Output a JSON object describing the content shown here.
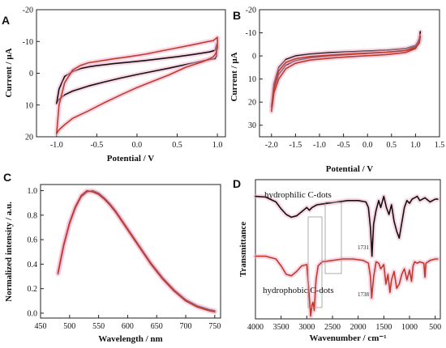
{
  "colors": {
    "black": "#111111",
    "red": "#c0392b",
    "halo": "#f4b6cf"
  },
  "chart_data": [
    {
      "panel": "A",
      "type": "line",
      "xlabel": "Potential / V",
      "ylabel": "Current / μA",
      "xlim": [
        -1.25,
        1.1
      ],
      "ylim": [
        20,
        -20
      ],
      "y_inverted": true,
      "xticks": [
        -1.0,
        -0.5,
        0.0,
        0.5,
        1.0
      ],
      "xtick_labels": [
        "-1.0",
        "-0.5",
        "0.0",
        "0.5",
        "1.0"
      ],
      "yticks": [
        -20,
        -10,
        0,
        10,
        20
      ],
      "ytick_labels": [
        "-20",
        "-10",
        "0",
        "10",
        "20"
      ],
      "series": [
        {
          "color": "black",
          "x": [
            -1.0,
            -0.97,
            -0.9,
            -0.8,
            -0.7,
            -0.6,
            -0.5,
            -0.3,
            -0.1,
            0.1,
            0.3,
            0.5,
            0.7,
            0.9,
            0.97,
            0.99,
            0.99,
            0.97,
            0.9,
            0.8,
            0.6,
            0.4,
            0.2,
            0.0,
            -0.2,
            -0.4,
            -0.6,
            -0.8,
            -0.9,
            -0.97,
            -1.0
          ],
          "y": [
            9.5,
            5.0,
            1.0,
            -0.5,
            -1.5,
            -2.0,
            -2.4,
            -3.0,
            -3.5,
            -4.0,
            -4.6,
            -5.2,
            -5.9,
            -6.7,
            -7.2,
            -9.0,
            -5.5,
            -4.6,
            -4.3,
            -3.8,
            -2.7,
            -1.6,
            -0.6,
            0.4,
            1.5,
            2.7,
            4.0,
            5.6,
            6.8,
            8.2,
            9.5
          ]
        },
        {
          "color": "red",
          "x": [
            -1.0,
            -0.97,
            -0.9,
            -0.8,
            -0.7,
            -0.6,
            -0.5,
            -0.3,
            -0.1,
            0.1,
            0.3,
            0.5,
            0.7,
            0.85,
            0.95,
            1.0,
            1.0,
            0.98,
            0.95,
            0.9,
            0.8,
            0.6,
            0.4,
            0.2,
            0.0,
            -0.2,
            -0.4,
            -0.6,
            -0.8,
            -0.9,
            -0.97,
            -1.0
          ],
          "y": [
            19.0,
            10.0,
            3.0,
            -1.0,
            -2.5,
            -3.3,
            -3.7,
            -4.5,
            -5.2,
            -6.0,
            -7.0,
            -8.0,
            -9.0,
            -9.8,
            -10.3,
            -11.3,
            -8.0,
            -6.2,
            -5.2,
            -4.5,
            -3.5,
            -1.8,
            0.5,
            2.5,
            4.5,
            6.8,
            9.2,
            11.8,
            14.2,
            16.2,
            17.8,
            19.0
          ]
        }
      ]
    },
    {
      "panel": "B",
      "type": "line",
      "xlabel": "Potential / V",
      "ylabel": "Current / μA",
      "xlim": [
        -2.25,
        1.5
      ],
      "ylim": [
        35,
        -20
      ],
      "y_inverted": true,
      "xticks": [
        -2.0,
        -1.5,
        -1.0,
        -0.5,
        0.0,
        0.5,
        1.0,
        1.5
      ],
      "xtick_labels": [
        "-2.0",
        "-1.5",
        "-1.0",
        "-0.5",
        "0.0",
        "0.5",
        "1.0",
        "1.5"
      ],
      "yticks": [
        -20,
        -10,
        0,
        10,
        20,
        30
      ],
      "ytick_labels": [
        "-20",
        "-10",
        "0",
        "10",
        "20",
        "30"
      ],
      "series": [
        {
          "color": "black",
          "x": [
            -2.0,
            -1.95,
            -1.85,
            -1.7,
            -1.5,
            -1.2,
            -0.8,
            -0.4,
            0.0,
            0.4,
            0.8,
            1.0,
            1.08,
            1.1,
            1.08,
            1.0,
            0.8,
            0.4,
            0.0,
            -0.4,
            -0.8,
            -1.2,
            -1.5,
            -1.7,
            -1.85,
            -1.95,
            -2.0
          ],
          "y": [
            22.0,
            12.0,
            5.0,
            1.5,
            0.0,
            -0.8,
            -1.4,
            -1.8,
            -2.1,
            -2.5,
            -3.2,
            -4.5,
            -7.0,
            -10.5,
            -7.5,
            -4.0,
            -2.4,
            -1.6,
            -1.1,
            -0.6,
            0.0,
            0.8,
            2.0,
            4.0,
            8.0,
            14.0,
            22.0
          ]
        },
        {
          "color": "red",
          "x": [
            -2.0,
            -1.95,
            -1.85,
            -1.7,
            -1.5,
            -1.2,
            -0.8,
            -0.4,
            0.0,
            0.4,
            0.8,
            1.0,
            1.08,
            1.1,
            1.08,
            1.0,
            0.8,
            0.4,
            0.0,
            -0.4,
            -0.8,
            -1.2,
            -1.5,
            -1.7,
            -1.85,
            -1.95,
            -2.0
          ],
          "y": [
            24.0,
            14.0,
            6.5,
            2.8,
            1.2,
            0.3,
            -0.3,
            -0.8,
            -1.2,
            -1.6,
            -2.3,
            -3.6,
            -5.5,
            -8.5,
            -6.0,
            -3.2,
            -1.5,
            -0.6,
            -0.1,
            0.4,
            1.0,
            1.8,
            3.2,
            5.5,
            10.0,
            16.0,
            24.0
          ]
        }
      ]
    },
    {
      "panel": "C",
      "type": "line",
      "xlabel": "Wavelength / nm",
      "ylabel": "Normalized intensity / a.u.",
      "xlim": [
        450,
        760
      ],
      "ylim": [
        -0.04,
        1.05
      ],
      "xticks": [
        450,
        500,
        550,
        600,
        650,
        700,
        750
      ],
      "xtick_labels": [
        "450",
        "500",
        "550",
        "600",
        "650",
        "700",
        "750"
      ],
      "yticks": [
        0.0,
        0.2,
        0.4,
        0.6,
        0.8,
        1.0
      ],
      "ytick_labels": [
        "0.0",
        "0.2",
        "0.4",
        "0.6",
        "0.8",
        "1.0"
      ],
      "series": [
        {
          "color": "black",
          "x": [
            480,
            490,
            500,
            510,
            520,
            530,
            540,
            550,
            560,
            570,
            580,
            600,
            620,
            640,
            660,
            680,
            700,
            720,
            740,
            750
          ],
          "y": [
            0.32,
            0.55,
            0.73,
            0.86,
            0.95,
            0.99,
            1.0,
            0.98,
            0.94,
            0.89,
            0.83,
            0.69,
            0.55,
            0.41,
            0.29,
            0.19,
            0.11,
            0.06,
            0.03,
            0.02
          ]
        },
        {
          "color": "red",
          "x": [
            480,
            490,
            500,
            510,
            520,
            530,
            540,
            550,
            560,
            570,
            580,
            600,
            620,
            640,
            660,
            680,
            700,
            720,
            740,
            750
          ],
          "y": [
            0.33,
            0.56,
            0.74,
            0.87,
            0.96,
            1.0,
            0.99,
            0.97,
            0.93,
            0.88,
            0.82,
            0.68,
            0.54,
            0.4,
            0.28,
            0.18,
            0.1,
            0.05,
            0.02,
            0.01
          ]
        }
      ]
    },
    {
      "panel": "D",
      "type": "line",
      "xlabel": "Wavenumber / cm⁻¹",
      "ylabel": "Transmittance",
      "xlim": [
        4000,
        400
      ],
      "ylim": [
        0,
        10
      ],
      "x_inverted": true,
      "xticks": [
        4000,
        3500,
        3000,
        2500,
        2000,
        1500,
        1000,
        500
      ],
      "xtick_labels": [
        "4000",
        "3500",
        "3000",
        "2500",
        "2000",
        "1500",
        "1000",
        "500"
      ],
      "annotations": [
        "hydrophilic C-dots",
        "hydrophobic C-dots",
        "1731",
        "1738"
      ],
      "series": [
        {
          "name": "hydrophilic C-dots",
          "color": "black",
          "x": [
            4000,
            3800,
            3600,
            3500,
            3400,
            3300,
            3200,
            3100,
            3000,
            2950,
            2900,
            2800,
            2600,
            2400,
            2200,
            2000,
            1850,
            1800,
            1760,
            1731,
            1700,
            1650,
            1600,
            1560,
            1500,
            1450,
            1400,
            1350,
            1300,
            1250,
            1200,
            1150,
            1100,
            1050,
            1000,
            950,
            900,
            850,
            800,
            700,
            600,
            500,
            450
          ],
          "y": [
            8.8,
            8.75,
            8.4,
            7.9,
            7.5,
            7.3,
            7.4,
            7.7,
            8.0,
            7.8,
            8.0,
            8.2,
            8.3,
            8.4,
            8.5,
            8.5,
            8.4,
            8.0,
            6.5,
            4.5,
            6.8,
            7.8,
            8.5,
            8.0,
            8.8,
            8.0,
            7.5,
            8.2,
            7.0,
            6.3,
            5.8,
            6.9,
            8.0,
            8.5,
            8.3,
            8.6,
            8.7,
            8.8,
            8.5,
            8.7,
            8.4,
            8.6,
            8.6
          ]
        },
        {
          "name": "hydrophobic C-dots",
          "color": "red",
          "x": [
            4000,
            3800,
            3600,
            3500,
            3400,
            3300,
            3200,
            3100,
            3000,
            2960,
            2925,
            2900,
            2880,
            2855,
            2820,
            2780,
            2700,
            2500,
            2300,
            2100,
            1900,
            1800,
            1760,
            1738,
            1700,
            1650,
            1600,
            1560,
            1500,
            1460,
            1420,
            1380,
            1350,
            1300,
            1250,
            1200,
            1150,
            1100,
            1050,
            1000,
            960,
            930,
            900,
            850,
            800,
            720,
            700,
            680,
            600,
            500,
            450
          ],
          "y": [
            4.5,
            4.5,
            4.3,
            3.8,
            3.2,
            3.1,
            3.4,
            3.8,
            3.9,
            2.0,
            0.2,
            1.0,
            1.2,
            0.6,
            2.8,
            3.8,
            4.1,
            4.2,
            4.3,
            4.3,
            4.2,
            4.0,
            3.0,
            1.5,
            3.0,
            4.1,
            4.0,
            3.6,
            3.9,
            2.5,
            3.2,
            1.9,
            2.8,
            3.4,
            2.2,
            2.5,
            3.2,
            3.6,
            2.8,
            3.5,
            2.7,
            3.8,
            4.1,
            4.0,
            4.1,
            4.0,
            3.0,
            4.0,
            4.2,
            4.3,
            4.3
          ]
        }
      ]
    }
  ]
}
